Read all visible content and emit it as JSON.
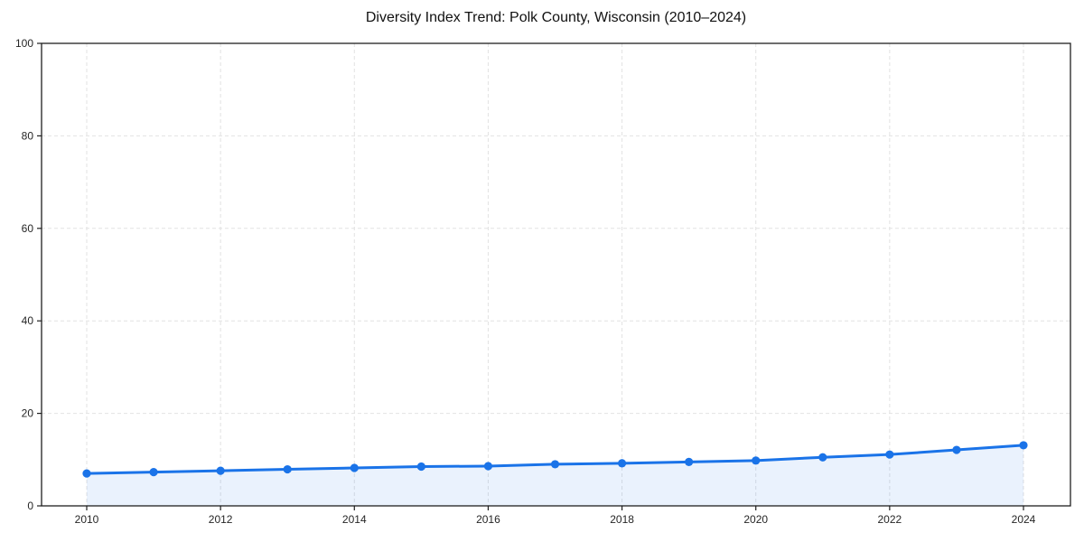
{
  "chart_data": {
    "type": "area",
    "title": "Diversity Index Trend: Polk County, Wisconsin (2010–2024)",
    "x": [
      2010,
      2011,
      2012,
      2013,
      2014,
      2015,
      2016,
      2017,
      2018,
      2019,
      2020,
      2021,
      2022,
      2023,
      2024
    ],
    "values": [
      7.0,
      7.3,
      7.6,
      7.9,
      8.2,
      8.5,
      8.6,
      9.0,
      9.2,
      9.5,
      9.8,
      10.5,
      11.1,
      12.1,
      13.1
    ],
    "xlabel": "",
    "ylabel": "",
    "ylim": [
      0,
      100
    ],
    "y_ticks": [
      0,
      20,
      40,
      60,
      80,
      100
    ],
    "x_ticks": [
      2010,
      2012,
      2014,
      2016,
      2018,
      2020,
      2022,
      2024
    ],
    "grid": "dashed, horizontal and vertical at labeled ticks",
    "legend": "none",
    "marker": "circle",
    "line_width": 3,
    "marker_radius": 4.6,
    "colors": {
      "line": "#1a73e8",
      "marker": "#1a73e8",
      "fill": "#1a73e8",
      "fill_opacity": 0.09,
      "grid": "#e2e2e2",
      "spine": "#1f1f1f",
      "tick_label": "#262626",
      "title": "#111111",
      "background": "#ffffff"
    }
  }
}
